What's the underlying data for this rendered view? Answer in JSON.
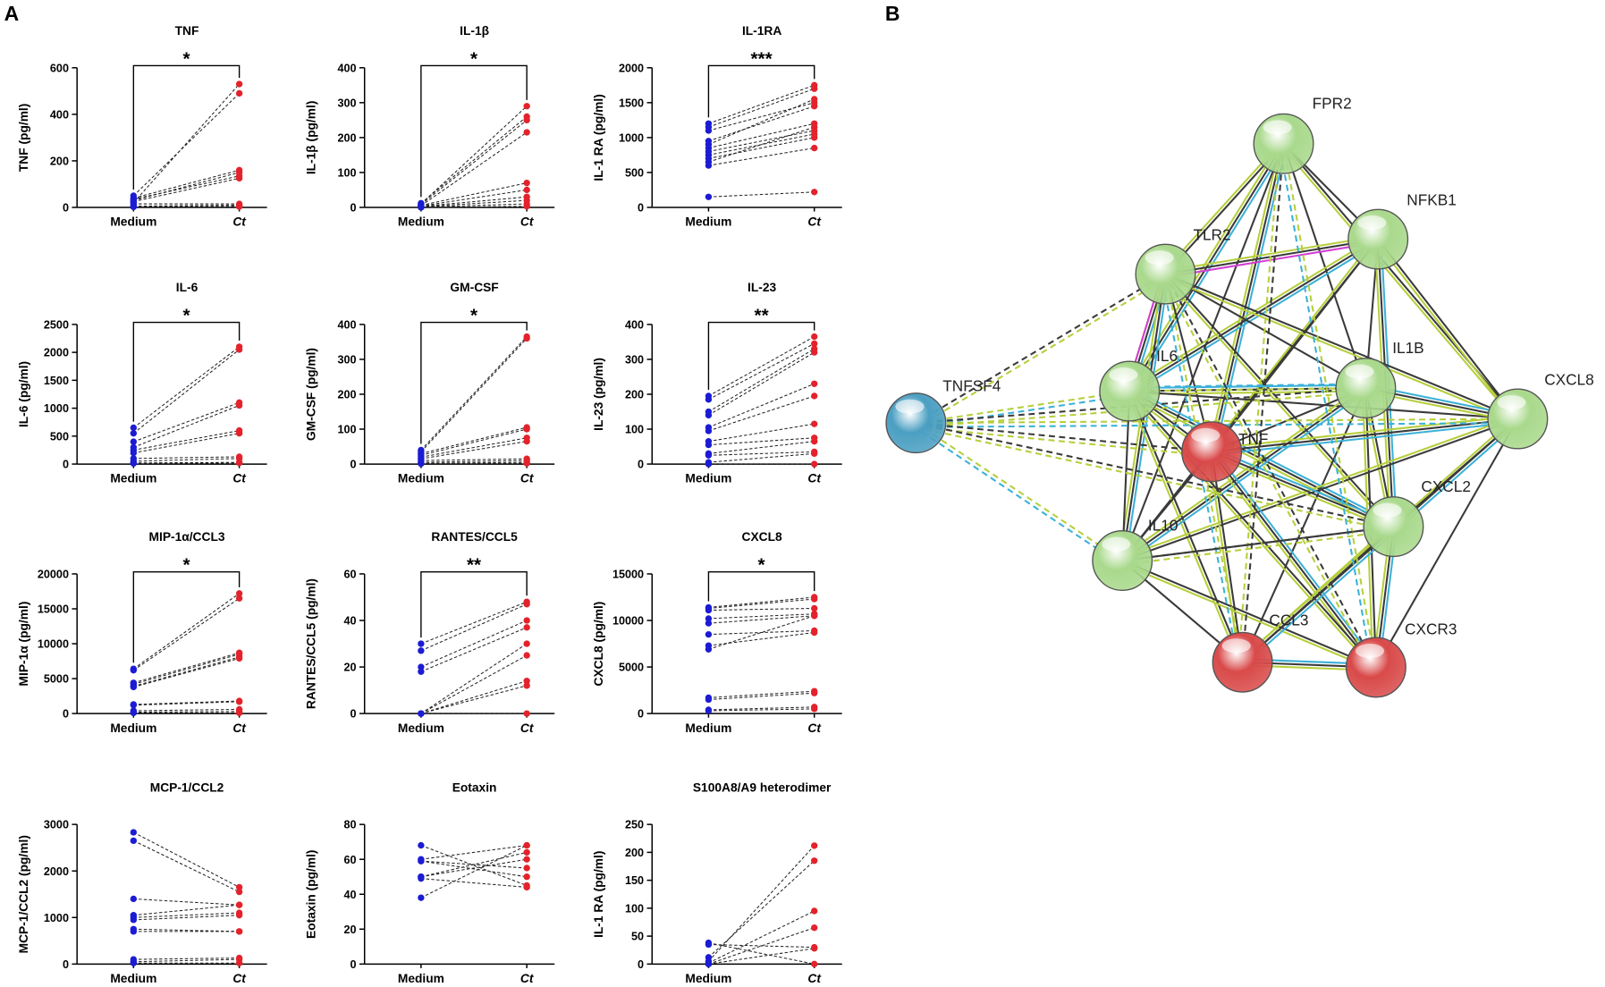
{
  "panel_labels": [
    "A",
    "B"
  ],
  "chart_data": [
    {
      "type": "paired",
      "title": "TNF",
      "y_label": "TNF (pg/ml)",
      "categories": [
        "Medium",
        "Ct"
      ],
      "colors": [
        "#1c1cd4",
        "#e3222b"
      ],
      "ylim": [
        0,
        600
      ],
      "yticks": [
        0,
        200,
        400,
        600
      ],
      "significance": "*",
      "pairs": [
        [
          20,
          530
        ],
        [
          50,
          490
        ],
        [
          40,
          160
        ],
        [
          30,
          150
        ],
        [
          35,
          135
        ],
        [
          25,
          125
        ],
        [
          15,
          15
        ],
        [
          5,
          10
        ],
        [
          3,
          5
        ],
        [
          2,
          3
        ]
      ]
    },
    {
      "type": "paired",
      "title": "IL-1β",
      "y_label": "IL-1β (pg/ml)",
      "categories": [
        "Medium",
        "Ct"
      ],
      "colors": [
        "#1c1cd4",
        "#e3222b"
      ],
      "ylim": [
        0,
        400
      ],
      "yticks": [
        0,
        100,
        200,
        300,
        400
      ],
      "significance": "*",
      "pairs": [
        [
          10,
          290
        ],
        [
          12,
          260
        ],
        [
          8,
          250
        ],
        [
          5,
          215
        ],
        [
          6,
          70
        ],
        [
          4,
          50
        ],
        [
          3,
          30
        ],
        [
          2,
          20
        ],
        [
          1,
          10
        ],
        [
          0,
          3
        ]
      ]
    },
    {
      "type": "paired",
      "title": "IL-1RA",
      "y_label": "IL-1 RA (pg/ml)",
      "categories": [
        "Medium",
        "Ct"
      ],
      "colors": [
        "#1c1cd4",
        "#e3222b"
      ],
      "ylim": [
        0,
        2000
      ],
      "yticks": [
        0,
        500,
        1000,
        1500,
        2000
      ],
      "significance": "***",
      "pairs": [
        [
          1200,
          1750
        ],
        [
          1150,
          1700
        ],
        [
          1100,
          1500
        ],
        [
          950,
          1450
        ],
        [
          900,
          1550
        ],
        [
          850,
          1200
        ],
        [
          800,
          1100
        ],
        [
          750,
          1050
        ],
        [
          700,
          1000
        ],
        [
          650,
          1150
        ],
        [
          600,
          850
        ],
        [
          150,
          220
        ]
      ]
    },
    {
      "type": "paired",
      "title": "IL-6",
      "y_label": "IL-6 (pg/ml)",
      "categories": [
        "Medium",
        "Ct"
      ],
      "colors": [
        "#1c1cd4",
        "#e3222b"
      ],
      "ylim": [
        0,
        2500
      ],
      "yticks": [
        0,
        500,
        1000,
        1500,
        2000,
        2500
      ],
      "significance": "*",
      "pairs": [
        [
          650,
          2100
        ],
        [
          550,
          2050
        ],
        [
          400,
          1100
        ],
        [
          300,
          1050
        ],
        [
          250,
          600
        ],
        [
          200,
          550
        ],
        [
          100,
          130
        ],
        [
          50,
          100
        ],
        [
          20,
          30
        ],
        [
          10,
          20
        ]
      ]
    },
    {
      "type": "paired",
      "title": "GM-CSF",
      "y_label": "GM-CSF (pg/ml)",
      "categories": [
        "Medium",
        "Ct"
      ],
      "colors": [
        "#1c1cd4",
        "#e3222b"
      ],
      "ylim": [
        0,
        400
      ],
      "yticks": [
        0,
        100,
        200,
        300,
        400
      ],
      "significance": "*",
      "pairs": [
        [
          40,
          365
        ],
        [
          35,
          360
        ],
        [
          30,
          105
        ],
        [
          25,
          100
        ],
        [
          20,
          75
        ],
        [
          15,
          65
        ],
        [
          10,
          15
        ],
        [
          5,
          10
        ],
        [
          2,
          5
        ],
        [
          1,
          2
        ]
      ]
    },
    {
      "type": "paired",
      "title": "IL-23",
      "y_label": "IL-23 (pg/ml)",
      "categories": [
        "Medium",
        "Ct"
      ],
      "colors": [
        "#1c1cd4",
        "#e3222b"
      ],
      "ylim": [
        0,
        400
      ],
      "yticks": [
        0,
        100,
        200,
        300,
        400
      ],
      "significance": "**",
      "pairs": [
        [
          195,
          365
        ],
        [
          185,
          345
        ],
        [
          150,
          330
        ],
        [
          140,
          320
        ],
        [
          105,
          230
        ],
        [
          95,
          195
        ],
        [
          65,
          115
        ],
        [
          55,
          75
        ],
        [
          30,
          65
        ],
        [
          25,
          35
        ],
        [
          5,
          30
        ],
        [
          0,
          0
        ]
      ]
    },
    {
      "type": "paired",
      "title": "MIP-1α/CCL3",
      "y_label": "MIP-1α (pg/ml)",
      "categories": [
        "Medium",
        "Ct"
      ],
      "colors": [
        "#1c1cd4",
        "#e3222b"
      ],
      "ylim": [
        0,
        20000
      ],
      "yticks": [
        0,
        5000,
        10000,
        15000,
        20000
      ],
      "significance": "*",
      "pairs": [
        [
          6400,
          17200
        ],
        [
          6200,
          16500
        ],
        [
          4400,
          8700
        ],
        [
          4200,
          8500
        ],
        [
          3900,
          8100
        ],
        [
          3800,
          7900
        ],
        [
          1300,
          1800
        ],
        [
          1200,
          1700
        ],
        [
          400,
          600
        ],
        [
          200,
          300
        ],
        [
          100,
          100
        ]
      ]
    },
    {
      "type": "paired",
      "title": "RANTES/CCL5",
      "y_label": "RANTES/CCL5 (pg/ml)",
      "categories": [
        "Medium",
        "Ct"
      ],
      "colors": [
        "#1c1cd4",
        "#e3222b"
      ],
      "ylim": [
        0,
        60
      ],
      "yticks": [
        0,
        20,
        40,
        60
      ],
      "significance": "**",
      "pairs": [
        [
          30,
          48
        ],
        [
          27,
          47
        ],
        [
          20,
          40
        ],
        [
          18,
          37
        ],
        [
          0,
          30
        ],
        [
          0,
          25
        ],
        [
          0,
          14
        ],
        [
          0,
          12
        ],
        [
          0,
          0
        ]
      ]
    },
    {
      "type": "paired",
      "title": "CXCL8",
      "y_label": "CXCL8  (pg/ml)",
      "categories": [
        "Medium",
        "Ct"
      ],
      "colors": [
        "#1c1cd4",
        "#e3222b"
      ],
      "ylim": [
        0,
        15000
      ],
      "yticks": [
        0,
        5000,
        10000,
        15000
      ],
      "significance": "*",
      "pairs": [
        [
          11400,
          12500
        ],
        [
          11300,
          12300
        ],
        [
          11100,
          11300
        ],
        [
          10200,
          10700
        ],
        [
          9700,
          10500
        ],
        [
          8500,
          8900
        ],
        [
          7300,
          8700
        ],
        [
          6900,
          10500
        ],
        [
          1700,
          2400
        ],
        [
          1500,
          2200
        ],
        [
          400,
          700
        ],
        [
          300,
          500
        ]
      ]
    },
    {
      "type": "paired",
      "title": "MCP-1/CCL2",
      "y_label": "MCP-1/CCL2 (pg/ml)",
      "categories": [
        "Medium",
        "Ct"
      ],
      "colors": [
        "#1c1cd4",
        "#e3222b"
      ],
      "ylim": [
        0,
        3000
      ],
      "yticks": [
        0,
        1000,
        2000,
        3000
      ],
      "pairs": [
        [
          2830,
          1650
        ],
        [
          2650,
          1550
        ],
        [
          1400,
          1270
        ],
        [
          1050,
          1270
        ],
        [
          1000,
          1100
        ],
        [
          950,
          1050
        ],
        [
          750,
          700
        ],
        [
          700,
          700
        ],
        [
          100,
          130
        ],
        [
          50,
          100
        ],
        [
          20,
          20
        ]
      ]
    },
    {
      "type": "paired",
      "title": "Eotaxin",
      "y_label": "Eotaxin (pg/ml)",
      "categories": [
        "Medium",
        "Ct"
      ],
      "colors": [
        "#1c1cd4",
        "#e3222b"
      ],
      "ylim": [
        0,
        80
      ],
      "yticks": [
        0,
        20,
        40,
        60,
        80
      ],
      "pairs": [
        [
          68,
          45
        ],
        [
          60,
          68
        ],
        [
          59,
          50
        ],
        [
          59,
          55
        ],
        [
          50,
          64
        ],
        [
          50,
          60
        ],
        [
          49,
          44
        ],
        [
          38,
          68
        ]
      ]
    },
    {
      "type": "paired",
      "title": "S100A8/A9 heterodimer",
      "y_label": "IL-1 RA (pg/ml)",
      "categories": [
        "Medium",
        "Ct"
      ],
      "colors": [
        "#1c1cd4",
        "#e3222b"
      ],
      "ylim": [
        0,
        250
      ],
      "yticks": [
        0,
        50,
        100,
        150,
        200,
        250
      ],
      "pairs": [
        [
          38,
          0
        ],
        [
          35,
          30
        ],
        [
          12,
          185
        ],
        [
          5,
          212
        ],
        [
          2,
          95
        ],
        [
          0,
          65
        ],
        [
          0,
          28
        ]
      ]
    }
  ],
  "network": {
    "nodes": [
      {
        "label": "FPR2",
        "color": "#a9d98c"
      },
      {
        "label": "NFKB1",
        "color": "#a9d98c"
      },
      {
        "label": "TLR2",
        "color": "#a9d98c"
      },
      {
        "label": "IL6",
        "color": "#a9d98c"
      },
      {
        "label": "IL1B",
        "color": "#a9d98c"
      },
      {
        "label": "CXCL8",
        "color": "#a9d98c"
      },
      {
        "label": "TNFSF4",
        "color": "#4b9fc2"
      },
      {
        "label": "TNF",
        "color": "#d94a4a"
      },
      {
        "label": "CXCL2",
        "color": "#a9d98c"
      },
      {
        "label": "IL10",
        "color": "#a9d98c"
      },
      {
        "label": "CCL3",
        "color": "#d94a4a"
      },
      {
        "label": "CXCR3",
        "color": "#d94a4a"
      }
    ]
  }
}
